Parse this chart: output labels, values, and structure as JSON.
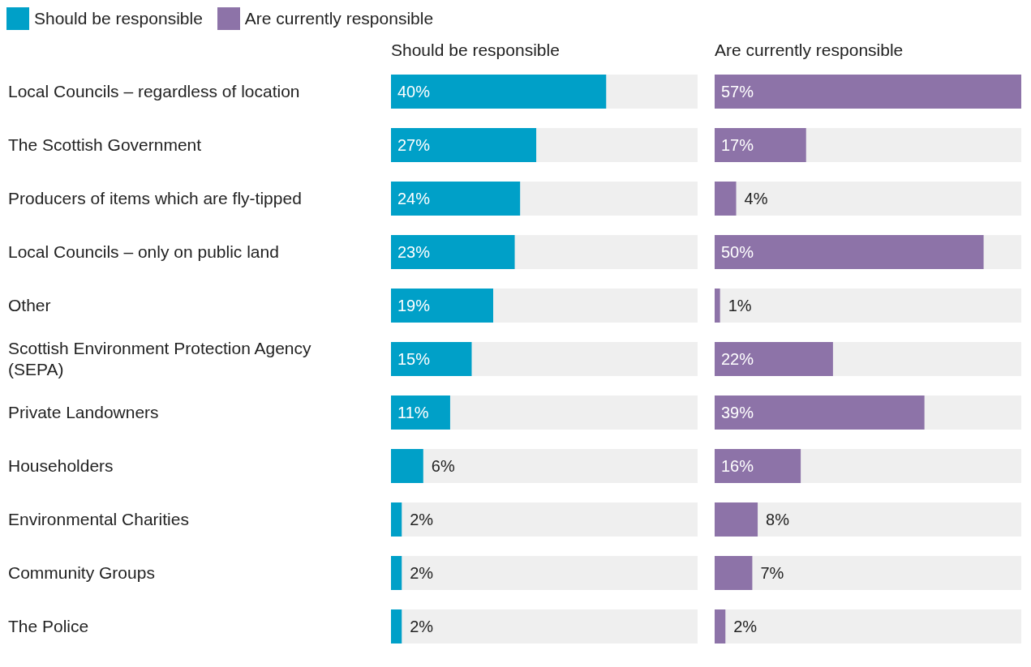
{
  "chart_data": [
    {
      "type": "bar",
      "orientation": "horizontal",
      "legend": "top left",
      "tick_labels": "y",
      "title": "Should be responsible",
      "categories": [
        "Local Councils – regardless of location",
        "The Scottish Government",
        "Producers of items which are fly-tipped",
        "Local Councils – only on public land",
        "Other",
        "Scottish Environment Protection Agency (SEPA)",
        "Private Landowners",
        "Householders",
        "Environmental Charities",
        "Community Groups",
        "The Police"
      ],
      "series": [
        {
          "name": "Should be responsible",
          "color": "#00a0c8",
          "values": [
            40,
            27,
            24,
            23,
            19,
            15,
            11,
            6,
            2,
            2,
            2
          ],
          "value_labels": [
            "40%",
            "27%",
            "24%",
            "23%",
            "19%",
            "15%",
            "11%",
            "6%",
            "2%",
            "2%",
            "2%"
          ]
        }
      ]
    },
    {
      "type": "bar",
      "orientation": "horizontal",
      "legend": "top left",
      "title": "Are currently responsible",
      "categories": [
        null,
        null,
        null,
        null,
        null,
        null,
        null,
        null,
        null,
        null,
        null
      ],
      "series": [
        {
          "name": "Are currently responsible",
          "color": "#8d73a8",
          "values": [
            57,
            17,
            4,
            50,
            1,
            22,
            39,
            16,
            8,
            7,
            2
          ],
          "value_labels": [
            "57%",
            "17%",
            "4%",
            "50%",
            "1%",
            "22%",
            "39%",
            "16%",
            "8%",
            "7%",
            "2%"
          ]
        }
      ]
    }
  ]
}
